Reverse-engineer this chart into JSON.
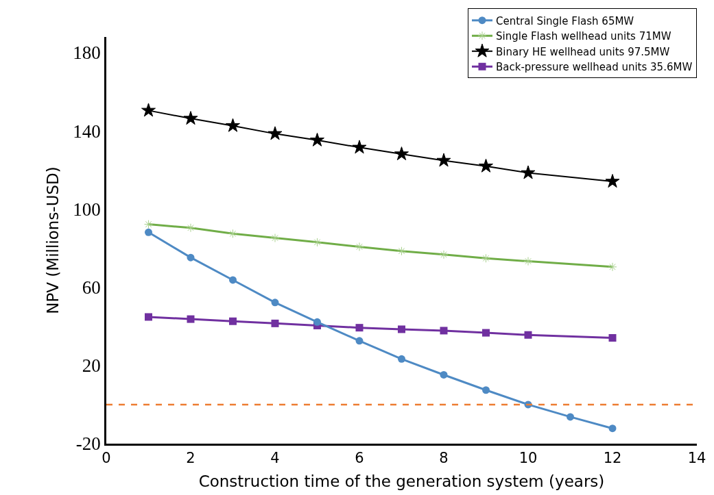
{
  "chart_data": {
    "type": "line",
    "xlabel": "Construction time of the generation system (years)",
    "ylabel": "NPV (Millions-USD)",
    "xlim": [
      0,
      14
    ],
    "xticks": [
      0,
      2,
      4,
      6,
      8,
      10,
      12,
      14
    ],
    "ylim": [
      -20,
      188
    ],
    "yticks": [
      -20,
      20,
      60,
      100,
      140,
      180
    ],
    "legend": "top right",
    "series": [
      {
        "name": "Central Single Flash 65MW",
        "color": "#4e8ac4",
        "marker": "circle",
        "x": [
          1,
          2,
          3,
          4,
          5,
          6,
          7,
          8,
          9,
          10,
          11,
          12
        ],
        "values": [
          88.1,
          75.2,
          63.7,
          52.2,
          42.2,
          32.6,
          23.3,
          15.2,
          7.4,
          0,
          -6.3,
          -12.2
        ]
      },
      {
        "name": "Single Flash wellhead units 71MW",
        "color": "#70ad47",
        "marker": "cross",
        "x": [
          1,
          2,
          3,
          4,
          5,
          6,
          7,
          8,
          9,
          10,
          12
        ],
        "values": [
          92.2,
          90.4,
          87.4,
          85.2,
          83.0,
          80.7,
          78.5,
          76.7,
          74.8,
          73.3,
          70.4
        ]
      },
      {
        "name": "Binary HE wellhead units 97.5MW",
        "color": "#000000",
        "marker": "star",
        "x": [
          1,
          2,
          3,
          4,
          5,
          6,
          7,
          8,
          9,
          10,
          12
        ],
        "values": [
          150.4,
          146.3,
          142.6,
          138.5,
          135.2,
          131.5,
          128.1,
          124.8,
          121.9,
          118.5,
          114.1
        ]
      },
      {
        "name": "Back-pressure wellhead units 35.6MW",
        "color": "#7030a0",
        "marker": "square",
        "x": [
          1,
          2,
          3,
          4,
          5,
          6,
          7,
          8,
          9,
          10,
          12
        ],
        "values": [
          44.8,
          43.7,
          42.6,
          41.5,
          40.4,
          39.3,
          38.5,
          37.8,
          36.7,
          35.6,
          34.1
        ]
      }
    ],
    "ref_lines": [
      {
        "axis": "y",
        "value": 0,
        "color": "#ed7d31",
        "line_style": "dashed"
      }
    ]
  }
}
